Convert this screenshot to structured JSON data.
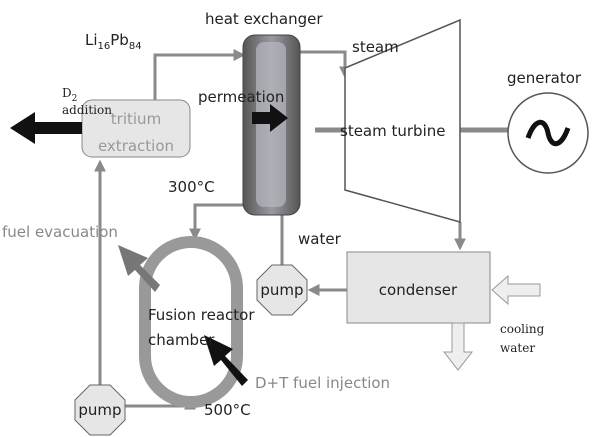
{
  "labels": {
    "heat_exchanger": "heat exchanger",
    "lipb": [
      "Li",
      "16",
      "Pb",
      "84"
    ],
    "steam": "steam",
    "generator": "generator",
    "d2": [
      "D",
      "2"
    ],
    "addition": "addition",
    "tritium_extraction": [
      "tritium",
      "extraction"
    ],
    "permeation": "permeation",
    "steam_turbine": "steam turbine",
    "temp_hot": "300°C",
    "fuel_evacuation": "fuel evacuation",
    "water": "water",
    "pump_top": "pump",
    "condenser": "condenser",
    "reactor": [
      "Fusion reactor",
      "chamber"
    ],
    "cooling_water": [
      "cooling",
      "water"
    ],
    "fuel_injection": "D+T fuel injection",
    "pump_bottom": "pump",
    "temp_cold": "500°C"
  }
}
